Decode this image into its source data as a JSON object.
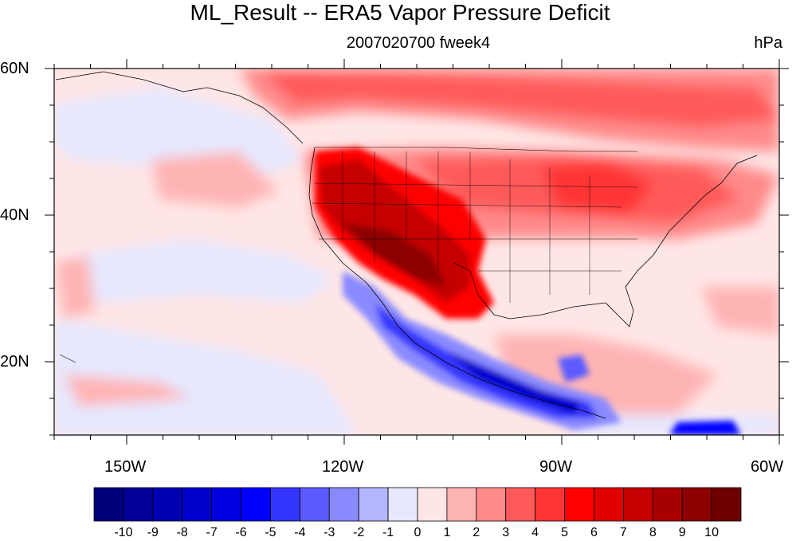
{
  "title": "ML_Result -- ERA5 Vapor Pressure Deficit",
  "subtitle": "2007020700 fweek4",
  "units": "hPa",
  "map": {
    "lon_range": [
      -160,
      -60
    ],
    "lat_range": [
      10,
      60
    ],
    "lat_labels": [
      {
        "value": 60,
        "text": "60N"
      },
      {
        "value": 40,
        "text": "40N"
      },
      {
        "value": 20,
        "text": "20N"
      }
    ],
    "lon_labels": [
      {
        "value": -150,
        "text": "150W"
      },
      {
        "value": -120,
        "text": "120W"
      },
      {
        "value": -90,
        "text": "90W"
      },
      {
        "value": -60,
        "text": "60W"
      }
    ]
  },
  "colorbar": {
    "labels": [
      "-10",
      "-9",
      "-8",
      "-7",
      "-6",
      "-5",
      "-4",
      "-3",
      "-2",
      "-1",
      "0",
      "1",
      "2",
      "3",
      "4",
      "5",
      "6",
      "7",
      "8",
      "9",
      "10"
    ],
    "colors": [
      "#00007a",
      "#000098",
      "#0000b3",
      "#0000cc",
      "#0000e0",
      "#0000ff",
      "#3434ff",
      "#5a5aff",
      "#8a8aff",
      "#b4b4ff",
      "#e6e8ff",
      "#ffe6e6",
      "#ffb4b4",
      "#ff8a8a",
      "#ff5a5a",
      "#ff3434",
      "#ff0000",
      "#e00000",
      "#c40000",
      "#a80000",
      "#8c0000",
      "#700000"
    ]
  }
}
